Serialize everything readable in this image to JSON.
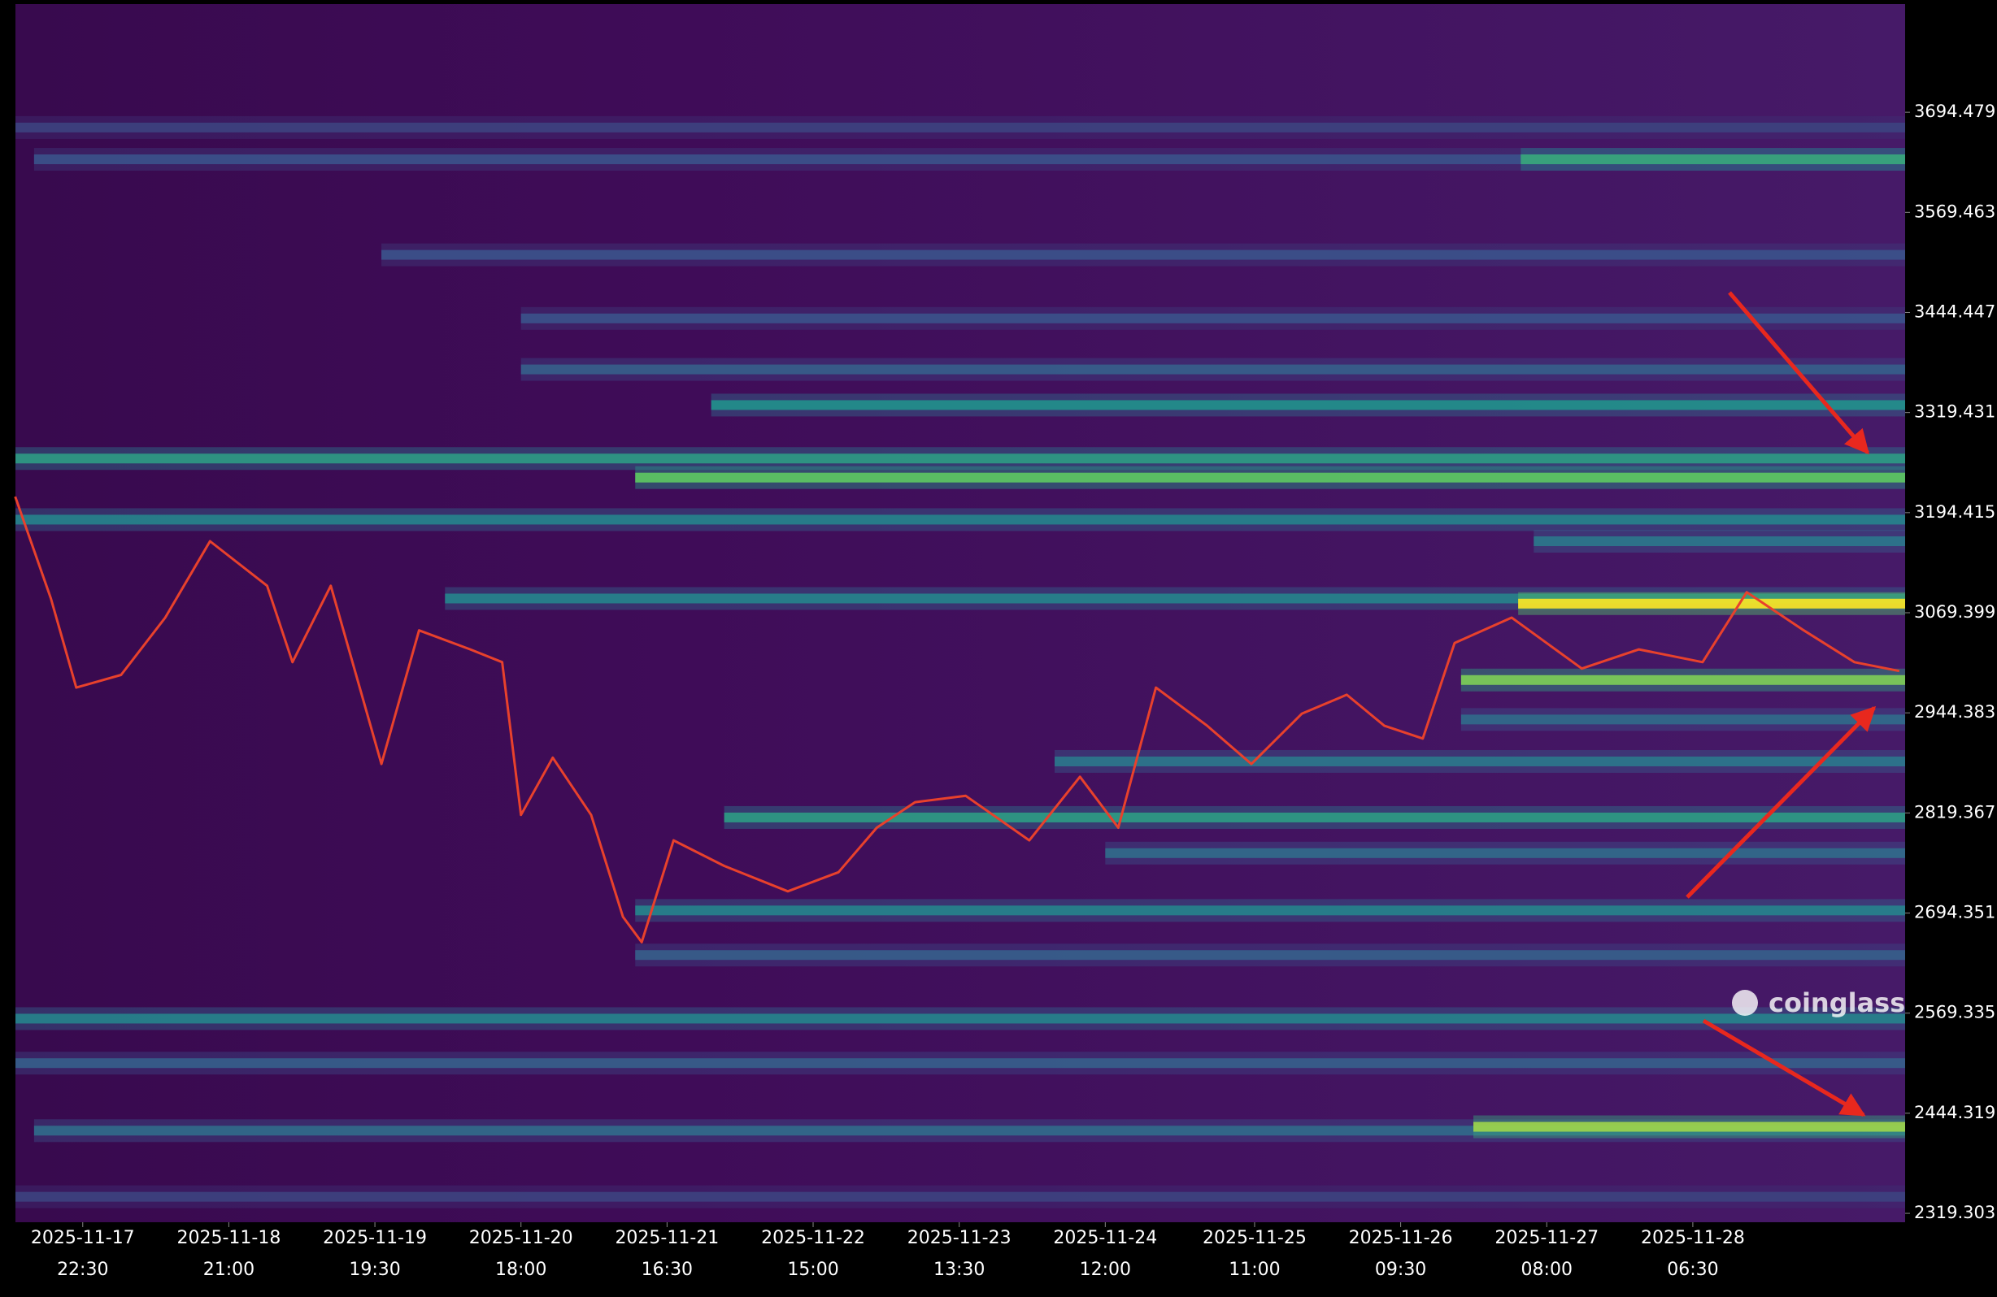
{
  "chart_data": {
    "type": "heatmap",
    "watermark": "coinglass",
    "xlim": [
      "2025-11-17 12:08",
      "2025-11-29 15:12"
    ],
    "ylim": [
      2308.2,
      3829.6
    ],
    "yticks": [
      2319.303,
      2444.319,
      2569.335,
      2694.351,
      2819.367,
      2944.383,
      3069.399,
      3194.415,
      3319.431,
      3444.447,
      3569.463,
      3694.479
    ],
    "xticks": [
      {
        "date": "2025-11-17",
        "time": "22:30"
      },
      {
        "date": "2025-11-18",
        "time": "21:00"
      },
      {
        "date": "2025-11-19",
        "time": "19:30"
      },
      {
        "date": "2025-11-20",
        "time": "18:00"
      },
      {
        "date": "2025-11-21",
        "time": "16:30"
      },
      {
        "date": "2025-11-22",
        "time": "15:00"
      },
      {
        "date": "2025-11-23",
        "time": "13:30"
      },
      {
        "date": "2025-11-24",
        "time": "12:00"
      },
      {
        "date": "2025-11-25",
        "time": "11:00"
      },
      {
        "date": "2025-11-26",
        "time": "09:30"
      },
      {
        "date": "2025-11-27",
        "time": "08:00"
      },
      {
        "date": "2025-11-28",
        "time": "06:30"
      }
    ],
    "colormap": [
      "#440154",
      "#3b528b",
      "#21918c",
      "#5ec962",
      "#fde725"
    ],
    "bands": [
      {
        "price": 3675.4,
        "intensity": 0.2,
        "from": "2025-11-17 12:08"
      },
      {
        "price": 3635.7,
        "intensity": 0.25,
        "from": "2025-11-17 15:00"
      },
      {
        "price": 3635.7,
        "intensity": 0.6,
        "from": "2025-11-27 04:00"
      },
      {
        "price": 3516.4,
        "intensity": 0.25,
        "from": "2025-11-19 20:30"
      },
      {
        "price": 3437.0,
        "intensity": 0.25,
        "from": "2025-11-20 18:00"
      },
      {
        "price": 3373.3,
        "intensity": 0.3,
        "from": "2025-11-20 18:00"
      },
      {
        "price": 3328.8,
        "intensity": 0.5,
        "from": "2025-11-21 23:18"
      },
      {
        "price": 3262.0,
        "intensity": 0.55,
        "from": "2025-11-17 12:08"
      },
      {
        "price": 3238.2,
        "intensity": 0.75,
        "from": "2025-11-21 11:36"
      },
      {
        "price": 3185.7,
        "intensity": 0.45,
        "from": "2025-11-17 12:08"
      },
      {
        "price": 3158.7,
        "intensity": 0.4,
        "from": "2025-11-27 06:00"
      },
      {
        "price": 3087.2,
        "intensity": 0.45,
        "from": "2025-11-20 06:18"
      },
      {
        "price": 3080.8,
        "intensity": 1.0,
        "from": "2025-11-27 03:36"
      },
      {
        "price": 2985.4,
        "intensity": 0.8,
        "from": "2025-11-26 18:48"
      },
      {
        "price": 2936.1,
        "intensity": 0.35,
        "from": "2025-11-26 18:48"
      },
      {
        "price": 2883.7,
        "intensity": 0.4,
        "from": "2025-11-24 04:12"
      },
      {
        "price": 2813.7,
        "intensity": 0.55,
        "from": "2025-11-22 01:18"
      },
      {
        "price": 2769.2,
        "intensity": 0.35,
        "from": "2025-11-24 12:00"
      },
      {
        "price": 2697.6,
        "intensity": 0.45,
        "from": "2025-11-21 11:36"
      },
      {
        "price": 2641.9,
        "intensity": 0.3,
        "from": "2025-11-21 11:36"
      },
      {
        "price": 2562.5,
        "intensity": 0.45,
        "from": "2025-11-17 12:08"
      },
      {
        "price": 2506.9,
        "intensity": 0.3,
        "from": "2025-11-17 12:08"
      },
      {
        "price": 2422.6,
        "intensity": 0.35,
        "from": "2025-11-17 15:00"
      },
      {
        "price": 2427.4,
        "intensity": 0.85,
        "from": "2025-11-26 20:42"
      },
      {
        "price": 2340.0,
        "intensity": 0.2,
        "from": "2025-11-17 12:08"
      }
    ],
    "price": {
      "color": "#e8412c",
      "x": [
        "2025-11-17 12:06",
        "2025-11-17 17:36",
        "2025-11-17 21:30",
        "2025-11-18 04:24",
        "2025-11-18 11:12",
        "2025-11-18 18:06",
        "2025-11-19 02:54",
        "2025-11-19 06:48",
        "2025-11-19 12:42",
        "2025-11-19 20:30",
        "2025-11-20 02:18",
        "2025-11-20 10:12",
        "2025-11-20 15:06",
        "2025-11-20 18:00",
        "2025-11-20 22:54",
        "2025-11-21 04:48",
        "2025-11-21 09:42",
        "2025-11-21 12:36",
        "2025-11-21 17:30",
        "2025-11-22 01:18",
        "2025-11-22 11:06",
        "2025-11-22 18:54",
        "2025-11-23 00:48",
        "2025-11-23 06:42",
        "2025-11-23 14:30",
        "2025-11-24 00:18",
        "2025-11-24 08:06",
        "2025-11-24 14:00",
        "2025-11-24 19:48",
        "2025-11-25 03:42",
        "2025-11-25 10:30",
        "2025-11-25 18:18",
        "2025-11-26 01:12",
        "2025-11-26 07:00",
        "2025-11-26 12:54",
        "2025-11-26 17:48",
        "2025-11-27 02:36",
        "2025-11-27 13:24",
        "2025-11-27 22:12",
        "2025-11-28 08:00",
        "2025-11-28 14:48",
        "2025-11-28 23:36",
        "2025-11-29 07:24",
        "2025-11-29 14:18"
      ],
      "values": [
        3214.4,
        3087.2,
        2975.9,
        2991.8,
        3063.3,
        3158.7,
        3103.1,
        3007.7,
        3103.1,
        2880.5,
        3047.4,
        3023.6,
        3007.7,
        2816.9,
        2888.4,
        2816.9,
        2689.7,
        2657.9,
        2785.1,
        2753.3,
        2721.5,
        2745.3,
        2801.0,
        2832.8,
        2840.7,
        2785.1,
        2864.6,
        2801.0,
        2975.9,
        2928.2,
        2880.5,
        2943.5,
        2967.0,
        2928.2,
        2912.3,
        3031.5,
        3063.3,
        2999.7,
        3023.6,
        3007.7,
        3095.1,
        3047.4,
        3007.7,
        2996.6
      ]
    }
  }
}
